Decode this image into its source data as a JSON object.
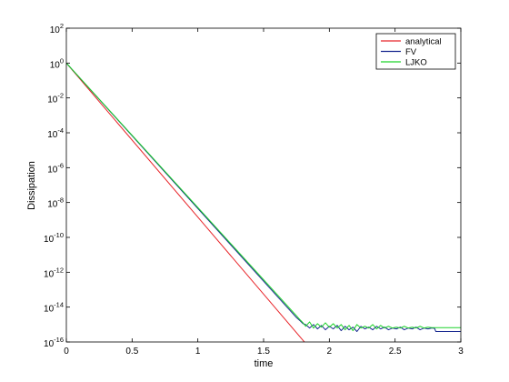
{
  "chart_data": {
    "type": "line",
    "title": "",
    "xlabel": "time",
    "ylabel": "Dissipation",
    "xlim": [
      0,
      3
    ],
    "ylim_exponent": [
      -16,
      2
    ],
    "yscale": "log",
    "grid": false,
    "legend_position": "top-right",
    "x_ticks": [
      {
        "value": 0,
        "label": "0"
      },
      {
        "value": 0.5,
        "label": "0.5"
      },
      {
        "value": 1,
        "label": "1"
      },
      {
        "value": 1.5,
        "label": "1.5"
      },
      {
        "value": 2,
        "label": "2"
      },
      {
        "value": 2.5,
        "label": "2.5"
      },
      {
        "value": 3,
        "label": "3"
      }
    ],
    "y_ticks": [
      {
        "exponent": 2,
        "base": "10",
        "power": "2"
      },
      {
        "exponent": 0,
        "base": "10",
        "power": "0"
      },
      {
        "exponent": -2,
        "base": "10",
        "power": "-2"
      },
      {
        "exponent": -4,
        "base": "10",
        "power": "-4"
      },
      {
        "exponent": -6,
        "base": "10",
        "power": "-6"
      },
      {
        "exponent": -8,
        "base": "10",
        "power": "-8"
      },
      {
        "exponent": -10,
        "base": "10",
        "power": "-10"
      },
      {
        "exponent": -12,
        "base": "10",
        "power": "-12"
      },
      {
        "exponent": -14,
        "base": "10",
        "power": "-14"
      },
      {
        "exponent": -16,
        "base": "10",
        "power": "-16"
      }
    ],
    "series": [
      {
        "name": "analytical",
        "color": "#e8262b",
        "log10_points": [
          [
            0,
            0
          ],
          [
            1.85,
            -16.35
          ]
        ]
      },
      {
        "name": "FV",
        "color": "#17278f",
        "log10_points": [
          [
            0,
            0
          ],
          [
            1.75,
            -14.6
          ],
          [
            1.78,
            -14.8
          ],
          [
            1.8,
            -14.95
          ],
          [
            1.82,
            -15.0
          ],
          [
            1.85,
            -15.2
          ],
          [
            1.88,
            -15.0
          ],
          [
            1.91,
            -15.25
          ],
          [
            1.94,
            -15.05
          ],
          [
            1.97,
            -15.3
          ],
          [
            2.0,
            -15.1
          ],
          [
            2.03,
            -15.25
          ],
          [
            2.06,
            -15.05
          ],
          [
            2.09,
            -15.35
          ],
          [
            2.12,
            -15.1
          ],
          [
            2.15,
            -15.3
          ],
          [
            2.18,
            -15.15
          ],
          [
            2.21,
            -15.4
          ],
          [
            2.24,
            -15.1
          ],
          [
            2.27,
            -15.25
          ],
          [
            2.3,
            -15.15
          ],
          [
            2.33,
            -15.3
          ],
          [
            2.36,
            -15.1
          ],
          [
            2.39,
            -15.25
          ],
          [
            2.42,
            -15.15
          ],
          [
            2.45,
            -15.3
          ],
          [
            2.48,
            -15.2
          ],
          [
            2.51,
            -15.25
          ],
          [
            2.54,
            -15.15
          ],
          [
            2.57,
            -15.3
          ],
          [
            2.6,
            -15.2
          ],
          [
            2.63,
            -15.25
          ],
          [
            2.66,
            -15.15
          ],
          [
            2.69,
            -15.3
          ],
          [
            2.72,
            -15.2
          ],
          [
            2.75,
            -15.25
          ],
          [
            2.78,
            -15.2
          ],
          [
            2.8,
            -15.22
          ],
          [
            2.81,
            -15.4
          ],
          [
            3.0,
            -15.4
          ]
        ]
      },
      {
        "name": "LJKO",
        "color": "#1fd32b",
        "log10_points": [
          [
            0,
            0
          ],
          [
            1.75,
            -14.5
          ],
          [
            1.78,
            -14.75
          ],
          [
            1.8,
            -14.9
          ],
          [
            1.82,
            -15.1
          ],
          [
            1.85,
            -14.85
          ],
          [
            1.88,
            -15.2
          ],
          [
            1.91,
            -14.95
          ],
          [
            1.94,
            -15.15
          ],
          [
            1.97,
            -14.9
          ],
          [
            2.0,
            -15.15
          ],
          [
            2.03,
            -14.95
          ],
          [
            2.06,
            -15.2
          ],
          [
            2.09,
            -15.0
          ],
          [
            2.12,
            -15.3
          ],
          [
            2.15,
            -15.05
          ],
          [
            2.18,
            -15.35
          ],
          [
            2.21,
            -15.0
          ],
          [
            2.24,
            -15.2
          ],
          [
            2.27,
            -15.1
          ],
          [
            2.3,
            -15.2
          ],
          [
            2.33,
            -15.0
          ],
          [
            2.36,
            -15.25
          ],
          [
            2.39,
            -15.05
          ],
          [
            2.42,
            -15.2
          ],
          [
            2.45,
            -15.1
          ],
          [
            2.48,
            -15.2
          ],
          [
            2.51,
            -15.15
          ],
          [
            2.54,
            -15.2
          ],
          [
            2.57,
            -15.1
          ],
          [
            2.6,
            -15.2
          ],
          [
            2.63,
            -15.15
          ],
          [
            2.66,
            -15.2
          ],
          [
            2.69,
            -15.1
          ],
          [
            2.72,
            -15.2
          ],
          [
            2.75,
            -15.15
          ],
          [
            2.78,
            -15.18
          ],
          [
            3.0,
            -15.18
          ]
        ]
      }
    ]
  }
}
